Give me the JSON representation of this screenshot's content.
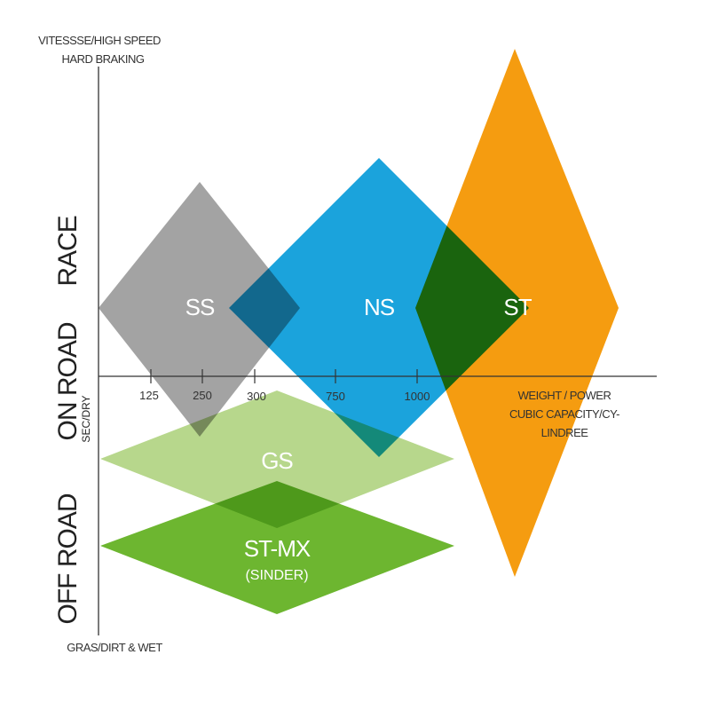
{
  "y_axis": {
    "top_label_line1": "VITESSSE/HIGH SPEED",
    "top_label_line2": "HARD BRAKING",
    "bottom_label": "GRAS/DIRT & WET",
    "side_labels": {
      "race": "RACE",
      "on_road": "ON ROAD",
      "sec_dry": "SEC/DRY",
      "off_road": "OFF ROAD"
    }
  },
  "x_axis": {
    "ticks": [
      "125",
      "250",
      "300",
      "750",
      "1000"
    ],
    "label_line1": "WEIGHT / POWER",
    "label_line2": "CUBIC CAPACITY/CY-",
    "label_line3": "LINDREE"
  },
  "segments": [
    {
      "id": "ss",
      "label": "SS",
      "color": "#a3a3a3"
    },
    {
      "id": "ns",
      "label": "NS",
      "color": "#1ba3dc"
    },
    {
      "id": "st",
      "label": "ST",
      "color": "#f59c10"
    },
    {
      "id": "gs",
      "label": "GS",
      "color": "#b7d78c"
    },
    {
      "id": "stmx",
      "label": "ST-MX",
      "sublabel": "(SINDER)",
      "color": "#6db630"
    }
  ]
}
